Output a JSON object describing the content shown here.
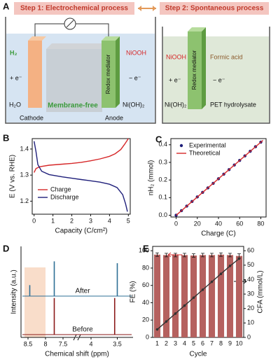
{
  "panel_a": {
    "label": "A",
    "step1": "Step 1: Electrochemical process",
    "step2": "Step 2: Spontaneous process",
    "left": {
      "h2": "H₂",
      "plus_e": "+ e⁻",
      "h2o": "H₂O",
      "cathode": "Cathode",
      "membrane": "Membrane-free",
      "anode": "Anode",
      "niooh": "NiOOH",
      "minus_e": "− e⁻",
      "nioh2": "Ni(OH)₂",
      "mediator": "Redox mediator"
    },
    "right": {
      "niooh": "NiOOH",
      "plus_e": "+ e⁻",
      "nioh2": "Ni(OH)₂",
      "formic": "Formic acid",
      "minus_e": "− e⁻",
      "pet": "PET hydrolysate",
      "mediator": "Redox mediator"
    }
  },
  "chart_data": [
    {
      "panel_label": "B",
      "type": "line",
      "xlabel": "Capacity (C/cm²)",
      "ylabel": "E (V vs. RHE)",
      "xlim": [
        -0.1,
        5.1
      ],
      "xticks": [
        0,
        1,
        2,
        3,
        4,
        5
      ],
      "ylim": [
        1.15,
        1.44
      ],
      "yticks": [
        1.2,
        1.3,
        1.4
      ],
      "legend": "lower left",
      "series": [
        {
          "name": "Charge",
          "color": "#d62728",
          "x": [
            0,
            0.1,
            0.3,
            0.8,
            1.5,
            2,
            2.5,
            3,
            3.5,
            4,
            4.3,
            4.6,
            4.8,
            5
          ],
          "values": [
            1.31,
            1.325,
            1.332,
            1.338,
            1.342,
            1.345,
            1.349,
            1.355,
            1.362,
            1.372,
            1.382,
            1.398,
            1.418,
            1.44
          ]
        },
        {
          "name": "Discharge",
          "color": "#1f1f7a",
          "x": [
            0,
            0.1,
            0.2,
            0.4,
            0.8,
            1.5,
            2,
            2.5,
            3,
            3.5,
            4,
            4.4,
            4.7,
            4.85,
            4.95
          ],
          "values": [
            1.43,
            1.39,
            1.34,
            1.315,
            1.302,
            1.293,
            1.288,
            1.283,
            1.278,
            1.273,
            1.265,
            1.252,
            1.225,
            1.19,
            1.16
          ]
        }
      ]
    },
    {
      "panel_label": "C",
      "type": "scatter",
      "xlabel": "Charge (C)",
      "ylabel": "nH₂ (mmol)",
      "xlim": [
        -5,
        85
      ],
      "xticks": [
        0,
        20,
        40,
        60,
        80
      ],
      "ylim": [
        -0.01,
        0.435
      ],
      "yticks": [
        {
          "value": 0,
          "label": "0.0"
        },
        0.1,
        0.2,
        0.3,
        0.4
      ],
      "legend": "upper left",
      "series": [
        {
          "name": "Experimental",
          "color": "#1f1f7a",
          "x": [
            0,
            5,
            10,
            15,
            20,
            25,
            30,
            35,
            40,
            45,
            50,
            55,
            60,
            65,
            70,
            75,
            80
          ],
          "values": [
            0,
            0.026,
            0.052,
            0.078,
            0.104,
            0.13,
            0.155,
            0.181,
            0.207,
            0.233,
            0.259,
            0.285,
            0.311,
            0.337,
            0.363,
            0.389,
            0.415
          ]
        },
        {
          "name": "Theoretical",
          "type": "line",
          "color": "#d62728",
          "x": [
            0,
            82
          ],
          "values": [
            0,
            0.425
          ]
        }
      ]
    },
    {
      "panel_label": "D",
      "type": "spectrum",
      "xlabel": "Chemical shift (ppm)",
      "ylabel": "Intensity (a.u.)",
      "xlim": [
        [
          8.7,
          7.2
        ],
        [
          4.2,
          3.2
        ]
      ],
      "xticks": [
        8.5,
        8,
        7.5,
        4,
        3.5
      ],
      "highlight": [
        8.6,
        8.0
      ],
      "series": [
        {
          "name": "After",
          "color": "#2e6f95",
          "x": [
            8.45,
            7.75,
            3.5
          ],
          "values": [
            0.3,
            0.95,
            0.9
          ]
        },
        {
          "name": "Before",
          "color": "#8b1a1a",
          "x": [
            7.75,
            3.55
          ],
          "values": [
            1.0,
            1.0
          ]
        }
      ]
    },
    {
      "panel_label": "E",
      "type": "bar",
      "xlabel": "Cycle",
      "ylabel": "FE (%)",
      "y2label": "CFA (mmol/L)",
      "categories": [
        1,
        2,
        3,
        4,
        5,
        6,
        7,
        8,
        9,
        10
      ],
      "ylim": [
        0,
        105
      ],
      "yticks": [
        0,
        20,
        40,
        60,
        80,
        100
      ],
      "y2lim": [
        0,
        63
      ],
      "y2ticks": [
        0,
        10,
        20,
        30,
        40,
        50,
        60
      ],
      "series": [
        {
          "color": "#b5615f",
          "values": [
            95.5,
            95,
            95,
            95,
            94.5,
            95,
            95,
            95.5,
            95,
            94
          ],
          "errors": [
            2,
            2,
            2,
            2,
            2,
            2,
            2,
            2,
            2,
            2.5
          ]
        },
        {
          "type": "line",
          "axis": "y2",
          "color": "#333333",
          "values": [
            5.5,
            11,
            16.5,
            22,
            27.5,
            33,
            38.5,
            44,
            49.5,
            54.5
          ]
        }
      ]
    }
  ]
}
